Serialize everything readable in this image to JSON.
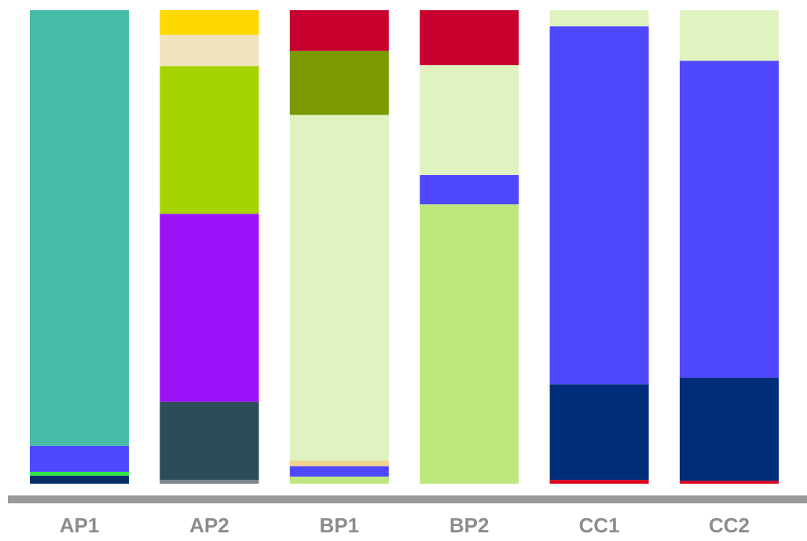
{
  "chart_data": {
    "type": "bar",
    "stacked": true,
    "normalized": true,
    "grid": false,
    "legend": "none",
    "ylim": [
      0,
      100
    ],
    "axis_color": "#999999",
    "categories": [
      "AP1",
      "AP2",
      "BP1",
      "BP2",
      "CC1",
      "CC2"
    ],
    "stacks": [
      {
        "category": "AP1",
        "segments": [
          {
            "value": 1.7,
            "color": "#052E66"
          },
          {
            "value": 0.8,
            "color": "#2EE84A"
          },
          {
            "value": 5.5,
            "color": "#4F48FF"
          },
          {
            "value": 92.0,
            "color": "#46BCA6"
          }
        ]
      },
      {
        "category": "AP2",
        "segments": [
          {
            "value": 0.8,
            "color": "#7A8590"
          },
          {
            "value": 16.5,
            "color": "#2B4C58"
          },
          {
            "value": 39.7,
            "color": "#9C12F8"
          },
          {
            "value": 31.2,
            "color": "#A6D400"
          },
          {
            "value": 6.6,
            "color": "#EFE4BC"
          },
          {
            "value": 5.2,
            "color": "#FFD800"
          }
        ]
      },
      {
        "category": "BP1",
        "segments": [
          {
            "value": 1.5,
            "color": "#BFE87C"
          },
          {
            "value": 2.2,
            "color": "#4F48FF"
          },
          {
            "value": 1.2,
            "color": "#F0D490"
          },
          {
            "value": 73.0,
            "color": "#DFF2C0"
          },
          {
            "value": 13.5,
            "color": "#7A9A00"
          },
          {
            "value": 8.6,
            "color": "#C8002E"
          }
        ]
      },
      {
        "category": "BP2",
        "segments": [
          {
            "value": 59.0,
            "color": "#BFE87C"
          },
          {
            "value": 6.2,
            "color": "#4F48FF"
          },
          {
            "value": 23.2,
            "color": "#DFF2C0"
          },
          {
            "value": 11.6,
            "color": "#C8002E"
          }
        ]
      },
      {
        "category": "CC1",
        "segments": [
          {
            "value": 0.8,
            "color": "#E0001A"
          },
          {
            "value": 20.2,
            "color": "#002D7A"
          },
          {
            "value": 75.6,
            "color": "#4F48FF"
          },
          {
            "value": 3.4,
            "color": "#DFF2C0"
          }
        ]
      },
      {
        "category": "CC2",
        "segments": [
          {
            "value": 0.6,
            "color": "#E0001A"
          },
          {
            "value": 21.8,
            "color": "#002D7A"
          },
          {
            "value": 66.9,
            "color": "#4F48FF"
          },
          {
            "value": 10.7,
            "color": "#DFF2C0"
          }
        ]
      }
    ]
  }
}
